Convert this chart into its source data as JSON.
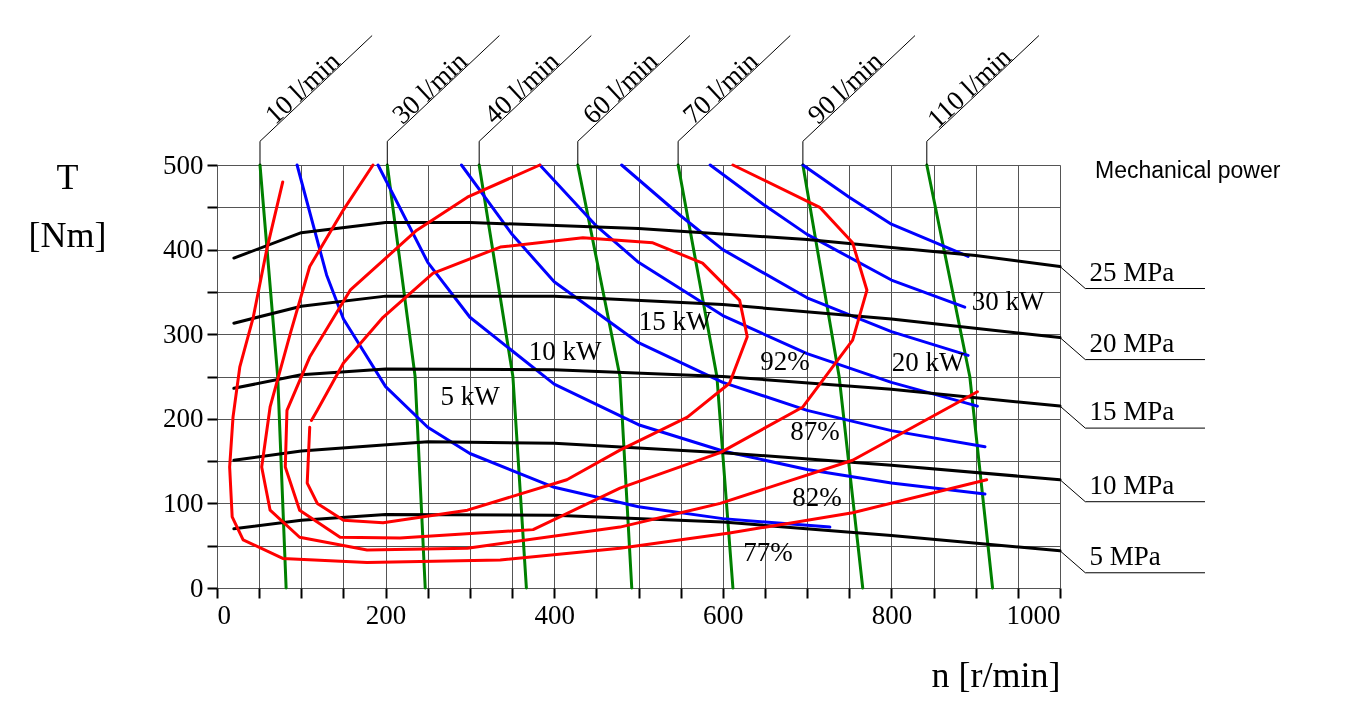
{
  "chart_data": {
    "type": "line",
    "xlabel": "n [r/min]",
    "ylabel": "T [Nm]",
    "xlim": [
      0,
      1000
    ],
    "ylim": [
      0,
      500
    ],
    "xticks": [
      0,
      {
        "value": 50,
        "label": null
      },
      {
        "value": 100,
        "label": null
      },
      {
        "value": 150,
        "label": null
      },
      200,
      {
        "value": 250,
        "label": null
      },
      {
        "value": 300,
        "label": null
      },
      {
        "value": 350,
        "label": null
      },
      400,
      {
        "value": 450,
        "label": null
      },
      {
        "value": 500,
        "label": null
      },
      {
        "value": 550,
        "label": null
      },
      600,
      {
        "value": 650,
        "label": null
      },
      {
        "value": 700,
        "label": null
      },
      {
        "value": 750,
        "label": null
      },
      800,
      {
        "value": 850,
        "label": null
      },
      {
        "value": 900,
        "label": null
      },
      {
        "value": 950,
        "label": null
      },
      {
        "value": 1000,
        "label": "1000"
      }
    ],
    "yticks": [
      0,
      {
        "value": 50,
        "label": null
      },
      100,
      {
        "value": 150,
        "label": null
      },
      200,
      {
        "value": 250,
        "label": null
      },
      300,
      {
        "value": 350,
        "label": null
      },
      400,
      {
        "value": 450,
        "label": null
      },
      500
    ],
    "grid": true,
    "legend": false,
    "marker": "none",
    "line_style": "solid",
    "series": [
      {
        "name": "10 l/min",
        "color": "#008000",
        "x": [
          82,
          72,
          51
        ],
        "values": [
          0,
          250,
          500
        ]
      },
      {
        "name": "30 l/min",
        "color": "#008000",
        "x": [
          247,
          235,
          202
        ],
        "values": [
          0,
          250,
          500
        ]
      },
      {
        "name": "40 l/min",
        "color": "#008000",
        "x": [
          367,
          351,
          311
        ],
        "values": [
          0,
          250,
          500
        ]
      },
      {
        "name": "60 l/min",
        "color": "#008000",
        "x": [
          492,
          478,
          428
        ],
        "values": [
          0,
          250,
          500
        ]
      },
      {
        "name": "70 l/min",
        "color": "#008000",
        "x": [
          612,
          593,
          547
        ],
        "values": [
          0,
          250,
          500
        ]
      },
      {
        "name": "90 l/min",
        "color": "#008000",
        "x": [
          766,
          738,
          695
        ],
        "values": [
          0,
          250,
          500
        ]
      },
      {
        "name": "110 l/min",
        "color": "#008000",
        "x": [
          920,
          893,
          842
        ],
        "values": [
          0,
          250,
          500
        ]
      },
      {
        "color": "#0000ff",
        "x": [
          95,
          130,
          150,
          200,
          250,
          300,
          400,
          500,
          600,
          727
        ],
        "values": [
          500,
          370,
          318,
          238,
          190,
          159,
          119,
          96,
          82,
          72
        ]
      },
      {
        "color": "#0000ff",
        "x": [
          191,
          250,
          300,
          400,
          500,
          600,
          700,
          800,
          911
        ],
        "values": [
          500,
          385,
          320,
          241,
          193,
          162,
          140,
          124,
          111
        ]
      },
      {
        "color": "#0000ff",
        "x": [
          290,
          350,
          400,
          500,
          600,
          700,
          800,
          911
        ],
        "values": [
          500,
          418,
          362,
          290,
          243,
          210,
          186,
          167
        ]
      },
      {
        "color": "#0000ff",
        "x": [
          383,
          450,
          500,
          600,
          700,
          800,
          902
        ],
        "values": [
          500,
          428,
          385,
          322,
          277,
          243,
          215
        ]
      },
      {
        "color": "#0000ff",
        "x": [
          480,
          550,
          600,
          700,
          800,
          891
        ],
        "values": [
          500,
          440,
          400,
          343,
          303,
          275
        ]
      },
      {
        "color": "#0000ff",
        "x": [
          585,
          650,
          700,
          800,
          887
        ],
        "values": [
          500,
          452,
          418,
          364,
          332
        ]
      },
      {
        "color": "#0000ff",
        "x": [
          695,
          750,
          800,
          891
        ],
        "values": [
          500,
          462,
          430,
          392
        ]
      },
      {
        "name": "25 MPa",
        "color": "#000000",
        "x": [
          20,
          100,
          200,
          300,
          500,
          700,
          900,
          1000
        ],
        "values": [
          390,
          420,
          432,
          432,
          425,
          412,
          393,
          380
        ]
      },
      {
        "name": "20 MPa",
        "color": "#000000",
        "x": [
          20,
          100,
          200,
          400,
          600,
          800,
          1000
        ],
        "values": [
          313,
          333,
          345,
          345,
          335,
          318,
          296
        ]
      },
      {
        "name": "15 MPa",
        "color": "#000000",
        "x": [
          20,
          100,
          200,
          400,
          600,
          800,
          1000
        ],
        "values": [
          236,
          252,
          259,
          258,
          250,
          235,
          215
        ]
      },
      {
        "name": "10 MPa",
        "color": "#000000",
        "x": [
          20,
          100,
          250,
          400,
          600,
          800,
          1000
        ],
        "values": [
          151,
          162,
          173,
          171,
          160,
          145,
          128
        ]
      },
      {
        "name": "5 MPa",
        "color": "#000000",
        "x": [
          20,
          100,
          200,
          400,
          600,
          800,
          1000
        ],
        "values": [
          70,
          80,
          87,
          86,
          78,
          62,
          44
        ]
      },
      {
        "color": "#ff0000",
        "x": [
          78,
          59,
          43,
          27,
          19,
          15,
          18,
          31,
          78,
          178,
          336,
          478,
          608,
          754,
          913
        ],
        "values": [
          480,
          400,
          320,
          261,
          202,
          143,
          84,
          57,
          35,
          30,
          33,
          47,
          65,
          89,
          128
        ]
      },
      {
        "color": "#ff0000",
        "x": [
          185,
          150,
          110,
          87,
          63,
          53,
          63,
          98,
          178,
          297,
          478,
          597,
          754,
          902
        ],
        "values": [
          500,
          447,
          380,
          301,
          214,
          143,
          92,
          60,
          45,
          47,
          72,
          100,
          151,
          232
        ]
      },
      {
        "color": "#ff0000",
        "x": [
          383,
          297,
          237,
          158,
          110,
          83,
          81,
          98,
          146,
          217,
          375,
          478,
          597,
          695,
          754,
          771,
          754,
          715,
          612
        ],
        "values": [
          500,
          462,
          423,
          352,
          273,
          210,
          143,
          92,
          60,
          59,
          69,
          118,
          160,
          214,
          293,
          352,
          408,
          450,
          500
        ]
      },
      {
        "color": "#ff0000",
        "x": [
          110,
          107,
          119,
          150,
          197,
          297,
          415,
          478,
          558,
          608,
          629,
          620,
          576,
          517,
          434,
          336,
          256,
          197,
          150,
          119,
          112
        ],
        "values": [
          190,
          124,
          100,
          80,
          77,
          92,
          128,
          163,
          202,
          242,
          297,
          340,
          384,
          408,
          414,
          403,
          372,
          320,
          266,
          210,
          198
        ]
      }
    ],
    "annotations": [
      "5 kW",
      "10 kW",
      "15 kW",
      "20 kW",
      "30 kW",
      "92%",
      "87%",
      "82%",
      "77%",
      "Mechanical power"
    ]
  }
}
